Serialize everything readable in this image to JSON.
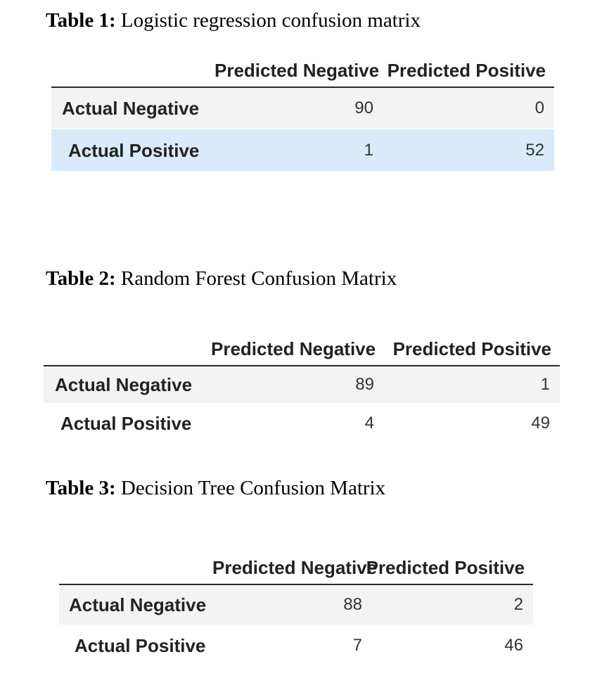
{
  "tables": [
    {
      "caption_label": "Table 1:",
      "caption_text": " Logistic regression confusion matrix",
      "col_headers": [
        "Predicted Negative",
        "Predicted Positive"
      ],
      "rows": [
        {
          "label": "Actual Negative",
          "values": [
            "90",
            "0"
          ]
        },
        {
          "label": "Actual Positive",
          "values": [
            "1",
            "52"
          ]
        }
      ]
    },
    {
      "caption_label": "Table 2:",
      "caption_text": " Random Forest Confusion Matrix",
      "col_headers": [
        "Predicted Negative",
        "Predicted Positive"
      ],
      "rows": [
        {
          "label": "Actual Negative",
          "values": [
            "89",
            "1"
          ]
        },
        {
          "label": "Actual Positive",
          "values": [
            "4",
            "49"
          ]
        }
      ]
    },
    {
      "caption_label": "Table 3:",
      "caption_text": " Decision Tree Confusion Matrix",
      "col_headers": [
        "Predicted Negative",
        "Predicted Positive"
      ],
      "rows": [
        {
          "label": "Actual Negative",
          "values": [
            "88",
            "2"
          ]
        },
        {
          "label": "Actual Positive",
          "values": [
            "7",
            "46"
          ]
        }
      ]
    }
  ],
  "colors": {
    "row_shade": "#f3f3f3",
    "row_highlight": "#d9ebfa",
    "rule": "#2b2b2b"
  }
}
